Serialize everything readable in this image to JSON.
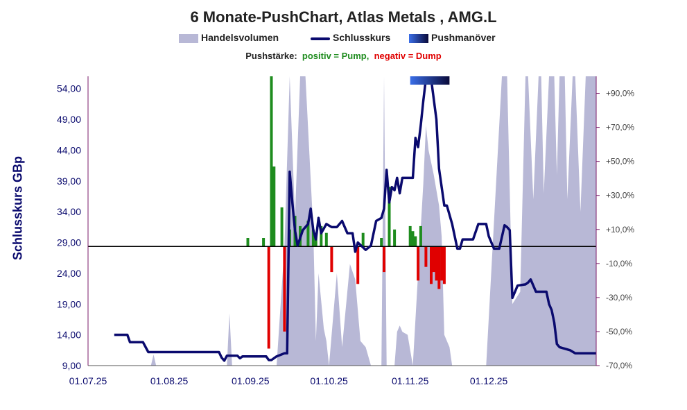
{
  "title": "6 Monate-PushChart, Atlas Metals , AMG.L",
  "legend": {
    "volume_label": "Handelsvolumen",
    "close_label": "Schlusskurs",
    "push_label": "Pushmanöver",
    "volume_color": "#b8b8d6",
    "close_color": "#0a0a6e",
    "push_color": "#2a55d6"
  },
  "push_strength": {
    "label": "Pushstärke:",
    "positive": "positiv = Pump,",
    "negative": "negativ = Dump",
    "positive_color": "#1e8c1e",
    "negative_color": "#e00000"
  },
  "chart_data": {
    "type": "line",
    "title": "6 Monate-PushChart, Atlas Metals , AMG.L",
    "ylabel": "Schlusskurs GBp",
    "ylim": [
      9,
      56
    ],
    "yticks": [
      "9,00",
      "14,00",
      "19,00",
      "24,00",
      "29,00",
      "34,00",
      "39,00",
      "44,00",
      "49,00",
      "54,00"
    ],
    "y2lim": [
      -70,
      100
    ],
    "y2ticks": [
      "-70,0%",
      "-50,0%",
      "-30,0%",
      "-10,0%",
      "+10,0%",
      "+30,0%",
      "+50,0%",
      "+70,0%",
      "+90,0%"
    ],
    "xticks": [
      "01.07.25",
      "01.08.25",
      "01.09.25",
      "01.10.25",
      "01.11.25",
      "01.12.25"
    ],
    "baseline_pct": 0,
    "close_series": {
      "name": "Schlusskurs",
      "points": [
        [
          "2025-07-11",
          14.0
        ],
        [
          "2025-07-16",
          14.0
        ],
        [
          "2025-07-17",
          12.8
        ],
        [
          "2025-07-22",
          12.8
        ],
        [
          "2025-07-24",
          11.2
        ],
        [
          "2025-08-20",
          11.2
        ],
        [
          "2025-08-21",
          10.3
        ],
        [
          "2025-08-22",
          9.8
        ],
        [
          "2025-08-23",
          10.6
        ],
        [
          "2025-08-27",
          10.6
        ],
        [
          "2025-08-28",
          10.2
        ],
        [
          "2025-08-29",
          10.5
        ],
        [
          "2025-09-07",
          10.5
        ],
        [
          "2025-09-08",
          9.9
        ],
        [
          "2025-09-09",
          9.9
        ],
        [
          "2025-09-11",
          10.5
        ],
        [
          "2025-09-14",
          11.0
        ],
        [
          "2025-09-15",
          11.0
        ],
        [
          "2025-09-16",
          40.5
        ],
        [
          "2025-09-17",
          35.5
        ],
        [
          "2025-09-18",
          31.0
        ],
        [
          "2025-09-19",
          28.5
        ],
        [
          "2025-09-21",
          31.0
        ],
        [
          "2025-09-23",
          32.0
        ],
        [
          "2025-09-24",
          34.5
        ],
        [
          "2025-09-25",
          31.0
        ],
        [
          "2025-09-26",
          29.5
        ],
        [
          "2025-09-27",
          33.0
        ],
        [
          "2025-09-28",
          30.5
        ],
        [
          "2025-09-30",
          32.0
        ],
        [
          "2025-10-02",
          31.5
        ],
        [
          "2025-10-04",
          31.5
        ],
        [
          "2025-10-06",
          32.5
        ],
        [
          "2025-10-07",
          31.5
        ],
        [
          "2025-10-08",
          30.5
        ],
        [
          "2025-10-10",
          30.5
        ],
        [
          "2025-10-11",
          27.5
        ],
        [
          "2025-10-12",
          29.0
        ],
        [
          "2025-10-15",
          27.8
        ],
        [
          "2025-10-17",
          28.5
        ],
        [
          "2025-10-19",
          32.5
        ],
        [
          "2025-10-21",
          33.0
        ],
        [
          "2025-10-22",
          34.5
        ],
        [
          "2025-10-23",
          40.8
        ],
        [
          "2025-10-24",
          35.5
        ],
        [
          "2025-10-25",
          38.0
        ],
        [
          "2025-10-26",
          37.5
        ],
        [
          "2025-10-27",
          39.5
        ],
        [
          "2025-10-28",
          37.0
        ],
        [
          "2025-10-29",
          39.5
        ],
        [
          "2025-11-02",
          39.5
        ],
        [
          "2025-11-03",
          46.0
        ],
        [
          "2025-11-04",
          44.5
        ],
        [
          "2025-11-05",
          48.0
        ],
        [
          "2025-11-06",
          52.0
        ],
        [
          "2025-11-07",
          56.0
        ],
        [
          "2025-11-09",
          55.5
        ],
        [
          "2025-11-11",
          49.0
        ],
        [
          "2025-11-12",
          41.0
        ],
        [
          "2025-11-14",
          35.0
        ],
        [
          "2025-11-15",
          35.0
        ],
        [
          "2025-11-17",
          32.0
        ],
        [
          "2025-11-19",
          28.0
        ],
        [
          "2025-11-20",
          28.0
        ],
        [
          "2025-11-21",
          29.5
        ],
        [
          "2025-11-25",
          29.5
        ],
        [
          "2025-11-27",
          32.0
        ],
        [
          "2025-11-30",
          32.0
        ],
        [
          "2025-12-01",
          30.0
        ],
        [
          "2025-12-03",
          28.0
        ],
        [
          "2025-12-05",
          28.0
        ],
        [
          "2025-12-07",
          31.8
        ],
        [
          "2025-12-08",
          31.5
        ],
        [
          "2025-12-09",
          31.0
        ],
        [
          "2025-12-10",
          20.0
        ],
        [
          "2025-12-11",
          21.0
        ],
        [
          "2025-12-12",
          22.0
        ],
        [
          "2025-12-15",
          22.2
        ],
        [
          "2025-12-16",
          22.5
        ],
        [
          "2025-12-17",
          23.0
        ],
        [
          "2025-12-18",
          22.0
        ],
        [
          "2025-12-19",
          21.0
        ],
        [
          "2025-12-23",
          21.0
        ],
        [
          "2025-12-24",
          19.0
        ],
        [
          "2025-12-25",
          18.0
        ],
        [
          "2025-12-26",
          16.0
        ],
        [
          "2025-12-27",
          12.5
        ],
        [
          "2025-12-28",
          12.0
        ],
        [
          "2026-01-01",
          11.5
        ],
        [
          "2026-01-03",
          11.0
        ],
        [
          "2026-01-11",
          11.0
        ]
      ]
    },
    "volume_series": {
      "name": "Handelsvolumen",
      "points": [
        [
          "2025-07-25",
          9.0
        ],
        [
          "2025-07-26",
          10.8
        ],
        [
          "2025-07-27",
          9.0
        ],
        [
          "2025-08-23",
          9.0
        ],
        [
          "2025-08-24",
          17.5
        ],
        [
          "2025-08-25",
          9.0
        ],
        [
          "2025-09-11",
          9.0
        ],
        [
          "2025-09-14",
          28.5
        ],
        [
          "2025-09-16",
          56.0
        ],
        [
          "2025-09-18",
          33.0
        ],
        [
          "2025-09-20",
          56.0
        ],
        [
          "2025-09-22",
          56.0
        ],
        [
          "2025-09-25",
          31.0
        ],
        [
          "2025-09-26",
          13.0
        ],
        [
          "2025-09-27",
          24.0
        ],
        [
          "2025-09-29",
          15.0
        ],
        [
          "2025-09-30",
          13.0
        ],
        [
          "2025-10-01",
          9.0
        ],
        [
          "2025-10-04",
          24.0
        ],
        [
          "2025-10-06",
          12.0
        ],
        [
          "2025-10-09",
          25.5
        ],
        [
          "2025-10-11",
          23.0
        ],
        [
          "2025-10-13",
          13.0
        ],
        [
          "2025-10-15",
          12.0
        ],
        [
          "2025-10-17",
          9.0
        ],
        [
          "2025-10-21",
          9.0
        ],
        [
          "2025-10-22",
          56.0
        ],
        [
          "2025-10-23",
          9.0
        ],
        [
          "2025-10-26",
          9.0
        ],
        [
          "2025-10-27",
          14.5
        ],
        [
          "2025-10-28",
          15.5
        ],
        [
          "2025-10-29",
          14.5
        ],
        [
          "2025-10-31",
          14.0
        ],
        [
          "2025-11-02",
          9.0
        ],
        [
          "2025-11-04",
          24.0
        ],
        [
          "2025-11-06",
          38.5
        ],
        [
          "2025-11-07",
          48.0
        ],
        [
          "2025-11-08",
          44.0
        ],
        [
          "2025-11-10",
          40.0
        ],
        [
          "2025-11-12",
          35.0
        ],
        [
          "2025-11-13",
          30.0
        ],
        [
          "2025-11-14",
          14.0
        ],
        [
          "2025-11-16",
          12.0
        ],
        [
          "2025-11-17",
          9.0
        ],
        [
          "2025-11-30",
          9.0
        ],
        [
          "2025-12-06",
          56.0
        ],
        [
          "2025-12-08",
          56.0
        ],
        [
          "2025-12-10",
          19.0
        ],
        [
          "2025-12-13",
          21.0
        ],
        [
          "2025-12-15",
          56.0
        ],
        [
          "2025-12-16",
          56.0
        ],
        [
          "2025-12-18",
          36.0
        ],
        [
          "2025-12-20",
          56.0
        ],
        [
          "2025-12-21",
          56.0
        ],
        [
          "2025-12-22",
          37.0
        ],
        [
          "2025-12-24",
          56.0
        ],
        [
          "2025-12-26",
          56.0
        ],
        [
          "2025-12-27",
          40.0
        ],
        [
          "2025-12-28",
          56.0
        ],
        [
          "2025-12-30",
          56.0
        ],
        [
          "2025-12-31",
          36.0
        ],
        [
          "2026-01-02",
          56.0
        ],
        [
          "2026-01-03",
          56.0
        ],
        [
          "2026-01-05",
          34.0
        ],
        [
          "2026-01-07",
          56.0
        ],
        [
          "2026-01-11",
          56.0
        ],
        [
          "2026-01-11",
          9.0
        ]
      ]
    },
    "push_bars": [
      [
        "2025-08-31",
        5
      ],
      [
        "2025-09-06",
        5
      ],
      [
        "2025-09-08",
        -60
      ],
      [
        "2025-09-09",
        100
      ],
      [
        "2025-09-10",
        47
      ],
      [
        "2025-09-13",
        23
      ],
      [
        "2025-09-14",
        -50
      ],
      [
        "2025-09-16",
        10
      ],
      [
        "2025-09-18",
        18
      ],
      [
        "2025-09-20",
        12
      ],
      [
        "2025-09-23",
        15
      ],
      [
        "2025-09-25",
        10
      ],
      [
        "2025-09-26",
        8
      ],
      [
        "2025-09-28",
        12
      ],
      [
        "2025-09-30",
        8
      ],
      [
        "2025-10-02",
        -15
      ],
      [
        "2025-10-12",
        -22
      ],
      [
        "2025-10-14",
        8
      ],
      [
        "2025-10-21",
        5
      ],
      [
        "2025-10-22",
        -15
      ],
      [
        "2025-10-24",
        35
      ],
      [
        "2025-10-26",
        10
      ],
      [
        "2025-11-01",
        12
      ],
      [
        "2025-11-02",
        9
      ],
      [
        "2025-11-03",
        6
      ],
      [
        "2025-11-04",
        -20
      ],
      [
        "2025-11-05",
        12
      ],
      [
        "2025-11-07",
        -12
      ],
      [
        "2025-11-09",
        -22
      ],
      [
        "2025-11-10",
        -15
      ],
      [
        "2025-11-11",
        -20
      ],
      [
        "2025-11-12",
        -25
      ],
      [
        "2025-11-13",
        -20
      ],
      [
        "2025-11-14",
        -22
      ]
    ],
    "push_maneuver": {
      "name": "Pushmanöver",
      "start": "2025-11-01",
      "end": "2025-11-16"
    }
  }
}
